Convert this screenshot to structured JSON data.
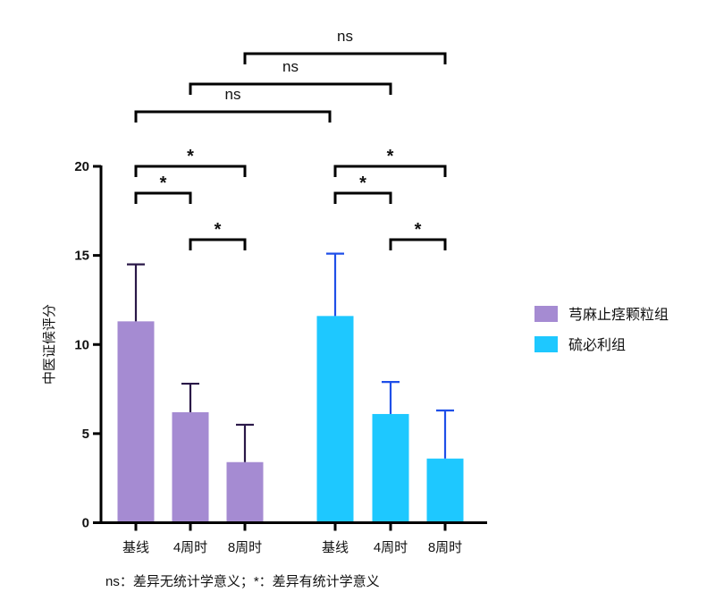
{
  "chart_data": {
    "type": "bar",
    "title": "",
    "xlabel": "",
    "ylabel": "中医证候评分",
    "ylim": [
      0,
      20
    ],
    "yticks": [
      "0",
      "5",
      "10",
      "15",
      "20"
    ],
    "categories": [
      "基线",
      "4周时",
      "8周时"
    ],
    "series": [
      {
        "name": "芎麻止痉颗粒组",
        "color": "#a58bd2",
        "error_color": "#2a1848",
        "values": [
          11.3,
          6.2,
          3.4
        ],
        "error_upper": [
          14.5,
          7.8,
          5.5
        ]
      },
      {
        "name": "硫必利组",
        "color": "#1ec8ff",
        "error_color": "#1f4fe8",
        "values": [
          11.6,
          6.1,
          3.6
        ],
        "error_upper": [
          15.1,
          7.9,
          6.3
        ]
      }
    ],
    "comparisons": [
      {
        "pair": [
          0,
          1
        ],
        "label": "*"
      },
      {
        "pair": [
          0,
          2
        ],
        "label": "*"
      },
      {
        "pair": [
          1,
          2
        ],
        "label": "*"
      },
      {
        "pair": [
          3,
          4
        ],
        "label": "*"
      },
      {
        "pair": [
          3,
          5
        ],
        "label": "*"
      },
      {
        "pair": [
          4,
          5
        ],
        "label": "*"
      },
      {
        "pair": [
          0,
          3
        ],
        "label": "ns"
      },
      {
        "pair": [
          1,
          4
        ],
        "label": "ns"
      },
      {
        "pair": [
          2,
          5
        ],
        "label": "ns"
      }
    ],
    "legend_position": "right",
    "footnote": "ns：差异无统计学意义；*：差异有统计学意义"
  }
}
